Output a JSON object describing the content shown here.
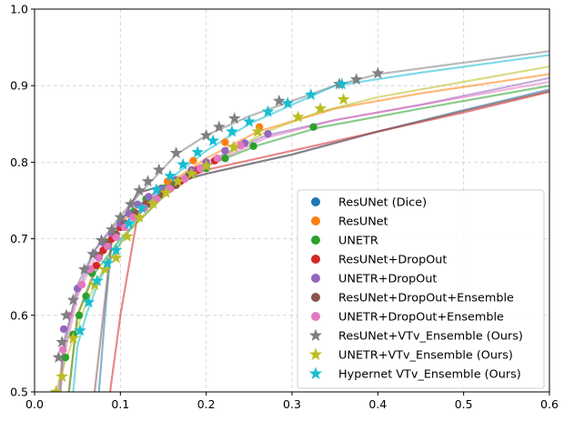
{
  "chart_data": {
    "type": "line",
    "title": "",
    "xlabel": "",
    "ylabel": "",
    "xlim": [
      0.0,
      0.6
    ],
    "ylim": [
      0.5,
      1.0
    ],
    "x_ticks": [
      0.0,
      0.1,
      0.2,
      0.3,
      0.4,
      0.5,
      0.6
    ],
    "x_tick_labels": [
      "0.0",
      "0.1",
      "0.2",
      "0.3",
      "0.4",
      "0.5",
      "0.6"
    ],
    "y_ticks": [
      0.5,
      0.6,
      0.7,
      0.8,
      0.9,
      1.0
    ],
    "y_tick_labels": [
      "0.5",
      "0.6",
      "0.7",
      "0.8",
      "0.9",
      "1.0"
    ],
    "grid": true,
    "legend_position": "lower-right",
    "series": [
      {
        "name": "ResUNet (Dice)",
        "color": "#1f77b4",
        "marker": "circle",
        "curve": [
          [
            0.075,
            0.5
          ],
          [
            0.082,
            0.6
          ],
          [
            0.09,
            0.7
          ],
          [
            0.12,
            0.76
          ],
          [
            0.2,
            0.785
          ],
          [
            0.3,
            0.81
          ],
          [
            0.4,
            0.84
          ],
          [
            0.5,
            0.868
          ],
          [
            0.6,
            0.895
          ]
        ],
        "points": []
      },
      {
        "name": "ResUNet",
        "color": "#ff7f0e",
        "marker": "circle",
        "curve": [
          [
            0.04,
            0.5
          ],
          [
            0.05,
            0.6
          ],
          [
            0.07,
            0.66
          ],
          [
            0.1,
            0.72
          ],
          [
            0.14,
            0.76
          ],
          [
            0.2,
            0.805
          ],
          [
            0.26,
            0.84
          ],
          [
            0.35,
            0.87
          ],
          [
            0.45,
            0.89
          ],
          [
            0.6,
            0.915
          ]
        ],
        "points": [
          [
            0.155,
            0.775
          ],
          [
            0.185,
            0.802
          ],
          [
            0.222,
            0.826
          ],
          [
            0.262,
            0.846
          ]
        ]
      },
      {
        "name": "UNETR",
        "color": "#2ca02c",
        "marker": "circle",
        "curve": [
          [
            0.04,
            0.5
          ],
          [
            0.045,
            0.55
          ],
          [
            0.05,
            0.6
          ],
          [
            0.07,
            0.655
          ],
          [
            0.1,
            0.7
          ],
          [
            0.15,
            0.755
          ],
          [
            0.2,
            0.795
          ],
          [
            0.26,
            0.822
          ],
          [
            0.33,
            0.845
          ],
          [
            0.45,
            0.87
          ],
          [
            0.6,
            0.9
          ]
        ],
        "points": [
          [
            0.036,
            0.545
          ],
          [
            0.045,
            0.575
          ],
          [
            0.052,
            0.6
          ],
          [
            0.06,
            0.625
          ],
          [
            0.067,
            0.655
          ],
          [
            0.075,
            0.675
          ],
          [
            0.085,
            0.695
          ],
          [
            0.1,
            0.715
          ],
          [
            0.115,
            0.735
          ],
          [
            0.13,
            0.752
          ],
          [
            0.148,
            0.766
          ],
          [
            0.163,
            0.772
          ],
          [
            0.18,
            0.783
          ],
          [
            0.2,
            0.792
          ],
          [
            0.222,
            0.805
          ],
          [
            0.255,
            0.821
          ],
          [
            0.325,
            0.846
          ]
        ]
      },
      {
        "name": "ResUNet+DropOut",
        "color": "#d62728",
        "marker": "circle",
        "curve": [
          [
            0.088,
            0.5
          ],
          [
            0.1,
            0.6
          ],
          [
            0.12,
            0.73
          ],
          [
            0.15,
            0.765
          ],
          [
            0.2,
            0.79
          ],
          [
            0.3,
            0.815
          ],
          [
            0.4,
            0.84
          ],
          [
            0.5,
            0.865
          ],
          [
            0.6,
            0.892
          ]
        ],
        "points": [
          [
            0.072,
            0.665
          ],
          [
            0.08,
            0.685
          ],
          [
            0.09,
            0.7
          ],
          [
            0.1,
            0.715
          ],
          [
            0.115,
            0.73
          ],
          [
            0.13,
            0.745
          ],
          [
            0.15,
            0.76
          ],
          [
            0.17,
            0.775
          ],
          [
            0.19,
            0.79
          ],
          [
            0.21,
            0.802
          ]
        ]
      },
      {
        "name": "UNETR+DropOut",
        "color": "#9467bd",
        "marker": "circle",
        "curve": [
          [
            0.028,
            0.5
          ],
          [
            0.035,
            0.57
          ],
          [
            0.05,
            0.63
          ],
          [
            0.07,
            0.685
          ],
          [
            0.1,
            0.725
          ],
          [
            0.14,
            0.76
          ],
          [
            0.2,
            0.8
          ],
          [
            0.27,
            0.835
          ],
          [
            0.35,
            0.855
          ],
          [
            0.45,
            0.875
          ],
          [
            0.6,
            0.91
          ]
        ],
        "points": [
          [
            0.034,
            0.582
          ],
          [
            0.05,
            0.635
          ],
          [
            0.06,
            0.66
          ],
          [
            0.07,
            0.68
          ],
          [
            0.08,
            0.695
          ],
          [
            0.09,
            0.707
          ],
          [
            0.1,
            0.72
          ],
          [
            0.11,
            0.733
          ],
          [
            0.12,
            0.745
          ],
          [
            0.133,
            0.755
          ],
          [
            0.148,
            0.765
          ],
          [
            0.165,
            0.777
          ],
          [
            0.183,
            0.79
          ],
          [
            0.2,
            0.8
          ],
          [
            0.222,
            0.815
          ],
          [
            0.245,
            0.825
          ],
          [
            0.272,
            0.837
          ]
        ]
      },
      {
        "name": "ResUNet+DropOut+Ensemble",
        "color": "#8c564b",
        "marker": "circle",
        "curve": [
          [
            0.07,
            0.5
          ],
          [
            0.08,
            0.6
          ],
          [
            0.09,
            0.7
          ],
          [
            0.12,
            0.76
          ],
          [
            0.2,
            0.785
          ],
          [
            0.3,
            0.81
          ],
          [
            0.4,
            0.84
          ],
          [
            0.5,
            0.867
          ],
          [
            0.6,
            0.893
          ]
        ],
        "points": [
          [
            0.065,
            0.66
          ],
          [
            0.075,
            0.678
          ],
          [
            0.085,
            0.692
          ],
          [
            0.095,
            0.706
          ],
          [
            0.105,
            0.72
          ],
          [
            0.118,
            0.733
          ],
          [
            0.132,
            0.745
          ],
          [
            0.148,
            0.758
          ],
          [
            0.165,
            0.77
          ],
          [
            0.18,
            0.782
          ]
        ]
      },
      {
        "name": "UNETR+DropOut+Ensemble",
        "color": "#e377c2",
        "marker": "circle",
        "curve": [
          [
            0.03,
            0.5
          ],
          [
            0.035,
            0.55
          ],
          [
            0.05,
            0.625
          ],
          [
            0.07,
            0.675
          ],
          [
            0.1,
            0.715
          ],
          [
            0.14,
            0.755
          ],
          [
            0.2,
            0.795
          ],
          [
            0.27,
            0.832
          ],
          [
            0.35,
            0.855
          ],
          [
            0.45,
            0.875
          ],
          [
            0.6,
            0.905
          ]
        ],
        "points": [
          [
            0.033,
            0.555
          ],
          [
            0.04,
            0.6
          ],
          [
            0.055,
            0.64
          ],
          [
            0.065,
            0.66
          ],
          [
            0.075,
            0.675
          ],
          [
            0.085,
            0.69
          ],
          [
            0.095,
            0.702
          ],
          [
            0.105,
            0.715
          ],
          [
            0.115,
            0.728
          ],
          [
            0.128,
            0.74
          ],
          [
            0.142,
            0.752
          ],
          [
            0.158,
            0.765
          ],
          [
            0.175,
            0.778
          ],
          [
            0.193,
            0.792
          ],
          [
            0.213,
            0.805
          ],
          [
            0.24,
            0.822
          ]
        ]
      },
      {
        "name": "ResUNet+VTv_Ensemble (Ours)",
        "color": "#7f7f7f",
        "marker": "star",
        "curve": [
          [
            0.03,
            0.5
          ],
          [
            0.033,
            0.55
          ],
          [
            0.05,
            0.64
          ],
          [
            0.07,
            0.685
          ],
          [
            0.1,
            0.73
          ],
          [
            0.13,
            0.768
          ],
          [
            0.165,
            0.81
          ],
          [
            0.2,
            0.835
          ],
          [
            0.25,
            0.86
          ],
          [
            0.3,
            0.88
          ],
          [
            0.35,
            0.9
          ],
          [
            0.4,
            0.915
          ],
          [
            0.5,
            0.93
          ],
          [
            0.6,
            0.945
          ]
        ],
        "points": [
          [
            0.028,
            0.545
          ],
          [
            0.032,
            0.565
          ],
          [
            0.037,
            0.6
          ],
          [
            0.045,
            0.62
          ],
          [
            0.058,
            0.66
          ],
          [
            0.068,
            0.68
          ],
          [
            0.078,
            0.698
          ],
          [
            0.09,
            0.712
          ],
          [
            0.1,
            0.728
          ],
          [
            0.112,
            0.745
          ],
          [
            0.122,
            0.763
          ],
          [
            0.132,
            0.775
          ],
          [
            0.145,
            0.79
          ],
          [
            0.165,
            0.812
          ],
          [
            0.2,
            0.835
          ],
          [
            0.215,
            0.846
          ],
          [
            0.233,
            0.857
          ],
          [
            0.285,
            0.88
          ],
          [
            0.355,
            0.902
          ],
          [
            0.375,
            0.908
          ],
          [
            0.4,
            0.916
          ]
        ]
      },
      {
        "name": "UNETR+VTv_Ensemble (Ours)",
        "color": "#bcbd22",
        "marker": "star",
        "curve": [
          [
            0.025,
            0.5
          ],
          [
            0.03,
            0.52
          ],
          [
            0.045,
            0.57
          ],
          [
            0.06,
            0.615
          ],
          [
            0.08,
            0.66
          ],
          [
            0.11,
            0.71
          ],
          [
            0.15,
            0.755
          ],
          [
            0.2,
            0.795
          ],
          [
            0.27,
            0.84
          ],
          [
            0.33,
            0.865
          ],
          [
            0.4,
            0.885
          ],
          [
            0.5,
            0.905
          ],
          [
            0.6,
            0.925
          ]
        ],
        "points": [
          [
            0.025,
            0.5
          ],
          [
            0.032,
            0.52
          ],
          [
            0.045,
            0.57
          ],
          [
            0.07,
            0.64
          ],
          [
            0.082,
            0.66
          ],
          [
            0.095,
            0.675
          ],
          [
            0.108,
            0.703
          ],
          [
            0.122,
            0.728
          ],
          [
            0.138,
            0.746
          ],
          [
            0.153,
            0.76
          ],
          [
            0.167,
            0.775
          ],
          [
            0.183,
            0.785
          ],
          [
            0.2,
            0.795
          ],
          [
            0.232,
            0.82
          ],
          [
            0.26,
            0.84
          ],
          [
            0.307,
            0.859
          ],
          [
            0.333,
            0.87
          ],
          [
            0.36,
            0.882
          ]
        ]
      },
      {
        "name": "Hypernet VTv_Ensemble (Ours)",
        "color": "#17becf",
        "marker": "star",
        "curve": [
          [
            0.045,
            0.5
          ],
          [
            0.05,
            0.56
          ],
          [
            0.06,
            0.6
          ],
          [
            0.075,
            0.645
          ],
          [
            0.1,
            0.695
          ],
          [
            0.13,
            0.745
          ],
          [
            0.16,
            0.78
          ],
          [
            0.2,
            0.815
          ],
          [
            0.25,
            0.85
          ],
          [
            0.3,
            0.875
          ],
          [
            0.35,
            0.9
          ],
          [
            0.45,
            0.917
          ],
          [
            0.6,
            0.94
          ]
        ],
        "points": [
          [
            0.053,
            0.58
          ],
          [
            0.063,
            0.617
          ],
          [
            0.073,
            0.645
          ],
          [
            0.085,
            0.668
          ],
          [
            0.095,
            0.685
          ],
          [
            0.11,
            0.72
          ],
          [
            0.125,
            0.74
          ],
          [
            0.142,
            0.764
          ],
          [
            0.158,
            0.782
          ],
          [
            0.173,
            0.797
          ],
          [
            0.19,
            0.813
          ],
          [
            0.208,
            0.828
          ],
          [
            0.23,
            0.84
          ],
          [
            0.25,
            0.853
          ],
          [
            0.272,
            0.866
          ],
          [
            0.295,
            0.877
          ],
          [
            0.322,
            0.888
          ],
          [
            0.358,
            0.902
          ]
        ]
      }
    ]
  }
}
